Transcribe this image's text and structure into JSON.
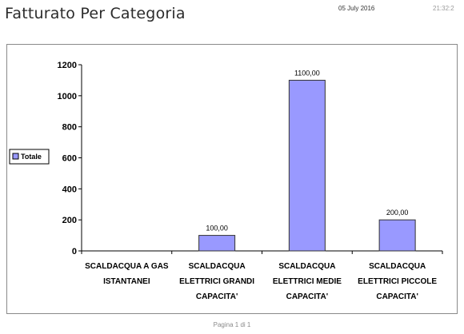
{
  "header": {
    "title": "Fatturato Per Categoria",
    "date": "05 July 2016",
    "time": "21:32:2"
  },
  "footer": {
    "page": "Pagina 1 di 1"
  },
  "colors": {
    "bar": "#9999ff",
    "bar_stroke": "#333333",
    "axis": "#000000"
  },
  "chart_data": {
    "type": "bar",
    "title": "",
    "xlabel": "",
    "ylabel": "",
    "categories": [
      [
        "SCALDACQUA A GAS",
        "ISTANTANEI"
      ],
      [
        "SCALDACQUA",
        "ELETTRICI GRANDI",
        "CAPACITA'"
      ],
      [
        "SCALDACQUA",
        "ELETTRICI MEDIE",
        "CAPACITA'"
      ],
      [
        "SCALDACQUA",
        "ELETTRICI PICCOLE",
        "CAPACITA'"
      ]
    ],
    "series": [
      {
        "name": "Totale",
        "values": [
          0,
          100,
          1100,
          200
        ]
      }
    ],
    "data_labels": [
      "",
      "100,00",
      "1100,00",
      "200,00"
    ],
    "ylim": [
      0,
      1200
    ],
    "yticks": [
      0,
      200,
      400,
      600,
      800,
      1000,
      1200
    ],
    "grid": false,
    "legend_position": "left"
  }
}
